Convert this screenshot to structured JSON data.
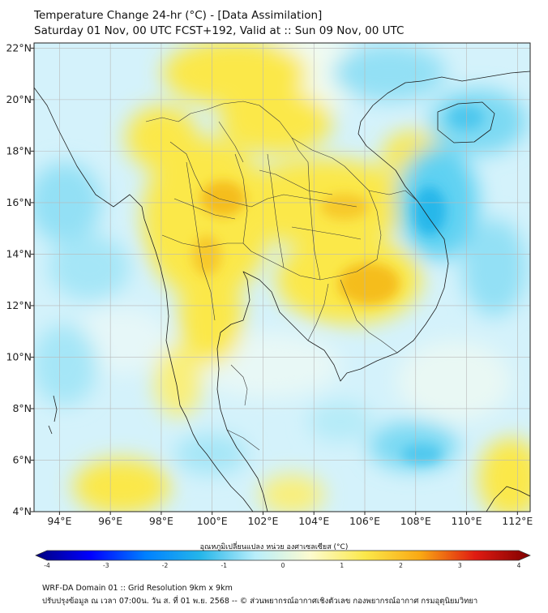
{
  "header": {
    "title": "Temperature Change 24-hr (°C) - [Data Assimilation]",
    "subtitle": "Saturday 01 Nov, 00 UTC FCST+192, Valid at :: Sun 09 Nov, 00 UTC"
  },
  "map": {
    "lat_labels": [
      "22°N",
      "20°N",
      "18°N",
      "16°N",
      "14°N",
      "12°N",
      "10°N",
      "8°N",
      "6°N",
      "4°N"
    ],
    "lon_labels": [
      "94°E",
      "96°E",
      "98°E",
      "100°E",
      "102°E",
      "104°E",
      "106°E",
      "108°E",
      "110°E",
      "112°E"
    ],
    "extent": {
      "lon_min": 93,
      "lon_max": 112.5,
      "lat_min": 4,
      "lat_max": 22.2
    },
    "colors": {
      "ocean_base": "#d4f2fb",
      "warm": "#fbe84a",
      "warm_strong": "#f5bd1a",
      "cool": "#5fd1f2",
      "cool_strong": "#26b7ea",
      "neutral": "#eefaf3"
    }
  },
  "colorbar": {
    "label": "อุณหภูมิเปลี่ยนแปลง หน่วย องศาเซลเซียส (°C)",
    "ticks": [
      "-4",
      "-3",
      "-2",
      "-1",
      "0",
      "1",
      "2",
      "3",
      "4"
    ],
    "vmin": -4,
    "vmax": 4,
    "colors": [
      "#00007f",
      "#0000ff",
      "#0080ff",
      "#25b6ea",
      "#b9eefb",
      "#fdfbcf",
      "#fbe84a",
      "#f9a813",
      "#e01b12",
      "#7f0000"
    ]
  },
  "footer": {
    "line1": "WRF-DA Domain 01 :: Grid Resolution 9km x 9km",
    "line2": "ปรับปรุงข้อมูล ณ เวลา 07:00น. วัน ส. ที่ 01 พ.ย. 2568 -- © ส่วนพยากรณ์อากาศเชิงตัวเลข กองพยากรณ์อากาศ กรมอุตุนิยมวิทยา"
  }
}
